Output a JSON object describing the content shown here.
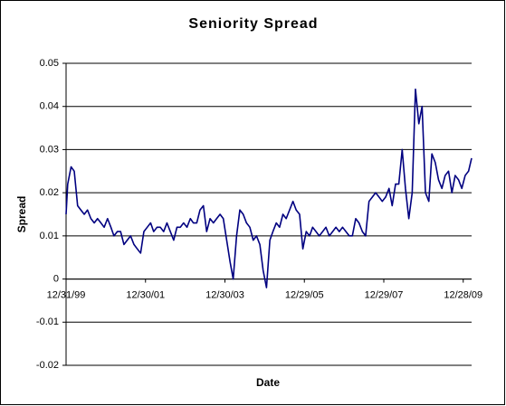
{
  "chart_data": {
    "type": "line",
    "title": "Seniority Spread",
    "x_label": "Date",
    "y_label": "Spread",
    "x": [
      "12/31/99",
      "01/15/00",
      "02/15/00",
      "03/15/00",
      "04/15/00",
      "05/15/00",
      "06/15/00",
      "07/15/00",
      "08/15/00",
      "09/15/00",
      "10/15/00",
      "11/15/00",
      "12/15/00",
      "01/15/01",
      "02/15/01",
      "03/15/01",
      "04/15/01",
      "05/15/01",
      "06/15/01",
      "07/15/01",
      "08/15/01",
      "09/15/01",
      "10/15/01",
      "11/15/01",
      "12/15/01",
      "01/15/02",
      "02/15/02",
      "03/15/02",
      "04/15/02",
      "05/15/02",
      "06/15/02",
      "07/15/02",
      "08/15/02",
      "09/15/02",
      "10/15/02",
      "11/15/02",
      "12/15/02",
      "01/15/03",
      "02/15/03",
      "03/15/03",
      "04/15/03",
      "05/15/03",
      "06/15/03",
      "07/15/03",
      "08/15/03",
      "09/15/03",
      "10/15/03",
      "11/15/03",
      "12/15/03",
      "01/15/04",
      "02/15/04",
      "03/15/04",
      "04/15/04",
      "05/15/04",
      "06/15/04",
      "07/15/04",
      "08/15/04",
      "09/15/04",
      "10/15/04",
      "11/15/04",
      "12/15/04",
      "01/15/05",
      "02/15/05",
      "03/15/05",
      "04/15/05",
      "05/15/05",
      "06/15/05",
      "07/15/05",
      "08/15/05",
      "09/15/05",
      "10/15/05",
      "11/15/05",
      "12/15/05",
      "01/15/06",
      "02/15/06",
      "03/15/06",
      "04/15/06",
      "05/15/06",
      "06/15/06",
      "07/15/06",
      "08/15/06",
      "09/15/06",
      "10/15/06",
      "11/15/06",
      "12/15/06",
      "01/15/07",
      "02/15/07",
      "03/15/07",
      "04/15/07",
      "05/15/07",
      "06/15/07",
      "07/15/07",
      "08/15/07",
      "09/15/07",
      "10/15/07",
      "11/15/07",
      "12/15/07",
      "01/15/08",
      "02/15/08",
      "03/15/08",
      "04/15/08",
      "05/15/08",
      "06/15/08",
      "07/15/08",
      "08/15/08",
      "09/15/08",
      "10/15/08",
      "11/15/08",
      "12/15/08",
      "01/15/09",
      "02/15/09",
      "03/15/09",
      "04/15/09",
      "05/15/09",
      "06/15/09",
      "07/15/09",
      "08/15/09",
      "09/15/09",
      "10/15/09",
      "11/15/09",
      "12/15/09",
      "01/15/10",
      "02/15/10",
      "03/15/10"
    ],
    "series": [
      {
        "name": "Spread",
        "color": "#000080",
        "values": [
          0.015,
          0.022,
          0.026,
          0.025,
          0.017,
          0.016,
          0.015,
          0.016,
          0.014,
          0.013,
          0.014,
          0.013,
          0.012,
          0.014,
          0.012,
          0.01,
          0.011,
          0.011,
          0.008,
          0.009,
          0.01,
          0.008,
          0.007,
          0.006,
          0.011,
          0.012,
          0.013,
          0.011,
          0.012,
          0.012,
          0.011,
          0.013,
          0.011,
          0.009,
          0.012,
          0.012,
          0.013,
          0.012,
          0.014,
          0.013,
          0.013,
          0.016,
          0.017,
          0.011,
          0.014,
          0.013,
          0.014,
          0.015,
          0.014,
          0.009,
          0.004,
          0.0,
          0.01,
          0.016,
          0.015,
          0.013,
          0.012,
          0.009,
          0.01,
          0.008,
          0.002,
          -0.002,
          0.009,
          0.011,
          0.013,
          0.012,
          0.015,
          0.014,
          0.016,
          0.018,
          0.016,
          0.015,
          0.007,
          0.011,
          0.01,
          0.012,
          0.011,
          0.01,
          0.011,
          0.012,
          0.01,
          0.011,
          0.012,
          0.011,
          0.012,
          0.011,
          0.01,
          0.01,
          0.014,
          0.013,
          0.011,
          0.01,
          0.018,
          0.019,
          0.02,
          0.019,
          0.018,
          0.019,
          0.021,
          0.017,
          0.022,
          0.022,
          0.03,
          0.021,
          0.014,
          0.02,
          0.044,
          0.036,
          0.04,
          0.02,
          0.018,
          0.029,
          0.027,
          0.023,
          0.021,
          0.024,
          0.025,
          0.02,
          0.024,
          0.023,
          0.021,
          0.024,
          0.025,
          0.028
        ]
      }
    ],
    "xlim": [
      "12/31/99",
      "03/15/10"
    ],
    "xticks": [
      "12/31/99",
      "12/30/01",
      "12/30/03",
      "12/29/05",
      "12/29/07",
      "12/28/09"
    ],
    "ylim": [
      -0.02,
      0.05
    ],
    "yticks": [
      0.05,
      0.04,
      0.03,
      0.02,
      0.01,
      0,
      -0.01,
      -0.02
    ],
    "grid": true
  }
}
